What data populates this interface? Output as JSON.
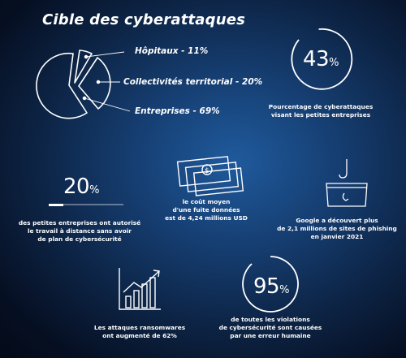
{
  "title": "Cible des cyberattaques",
  "pie": {
    "slices": [
      {
        "label": "Hôpitaux - 11%",
        "value": 11
      },
      {
        "label": "Collectivités territorial - 20%",
        "value": 20
      },
      {
        "label": "Entreprises - 69%",
        "value": 69
      }
    ]
  },
  "stat_small_business": {
    "value": "43",
    "unit": "%",
    "caption_line1": "Pourcentage de cyberattaques",
    "caption_line2": "visant les petites entreprises"
  },
  "stat_remote": {
    "value": "20",
    "unit": "%",
    "progress": 0.2,
    "caption_line1": "des petites entreprises ont autorisé",
    "caption_line2": "le travail à distance sans avoir",
    "caption_line3": "de plan de cybersécurité"
  },
  "stat_breach_cost": {
    "caption_line1": "le coût moyen",
    "caption_line2": "d'une fuite données",
    "caption_line3": "est de 4,24 millions USD"
  },
  "stat_phishing": {
    "caption_line1": "Google a découvert plus",
    "caption_line2": "de 2,1 millions de sites de phishing",
    "caption_line3": "en janvier 2021"
  },
  "stat_ransomware": {
    "caption_line1": "Les attaques ransomwares",
    "caption_line2": "ont augmenté de 62%"
  },
  "stat_human_error": {
    "value": "95",
    "unit": "%",
    "caption_line1": "de toutes les violations",
    "caption_line2": "de cybersécurité sont causées",
    "caption_line3": "par une erreur humaine"
  },
  "icons": {
    "money": "money-bills-icon",
    "phishing": "phishing-hook-icon",
    "chart": "growth-chart-icon"
  }
}
